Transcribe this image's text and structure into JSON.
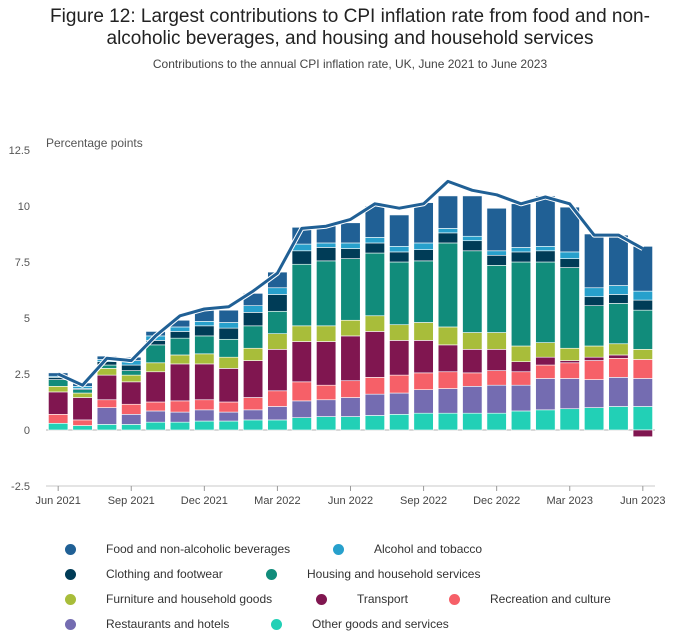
{
  "chart_data": {
    "type": "bar",
    "title": "Figure 12: Largest contributions to CPI inflation rate from food and non-alcoholic beverages, and housing and household services",
    "title_lines": [
      "Figure 12: Largest contributions to CPI inflation rate from food and non-",
      "alcoholic beverages, and housing and household services"
    ],
    "subtitle": "Contributions to the annual CPI inflation rate, UK, June 2021 to June 2023",
    "ylabel": "Percentage points",
    "ylim": [
      -2.5,
      12.5
    ],
    "yticks": [
      -2.5,
      0,
      2.5,
      5,
      7.5,
      10,
      12.5
    ],
    "ytick_labels": [
      "-2.5",
      "0",
      "2.5",
      "5",
      "7.5",
      "10",
      "12.5"
    ],
    "stacked": true,
    "grid": false,
    "legend_position": "bottom",
    "categories": [
      "Jun 2021",
      "Jul 2021",
      "Aug 2021",
      "Sep 2021",
      "Oct 2021",
      "Nov 2021",
      "Dec 2021",
      "Jan 2022",
      "Feb 2022",
      "Mar 2022",
      "Apr 2022",
      "May 2022",
      "Jun 2022",
      "Jul 2022",
      "Aug 2022",
      "Sep 2022",
      "Oct 2022",
      "Nov 2022",
      "Dec 2022",
      "Jan 2023",
      "Feb 2023",
      "Mar 2023",
      "Apr 2023",
      "May 2023",
      "Jun 2023"
    ],
    "xtick_labels": [
      {
        "index": 0,
        "label": "Jun 2021"
      },
      {
        "index": 3,
        "label": "Sep 2021"
      },
      {
        "index": 6,
        "label": "Dec 2021"
      },
      {
        "index": 9,
        "label": "Mar 2022"
      },
      {
        "index": 12,
        "label": "Jun 2022"
      },
      {
        "index": 15,
        "label": "Sep 2022"
      },
      {
        "index": 18,
        "label": "Dec 2022"
      },
      {
        "index": 21,
        "label": "Mar 2023"
      },
      {
        "index": 24,
        "label": "Jun 2023"
      }
    ],
    "series": [
      {
        "name": "Other goods and services",
        "color": "#22d0b6",
        "values": [
          0.3,
          0.2,
          0.25,
          0.25,
          0.35,
          0.35,
          0.4,
          0.4,
          0.45,
          0.45,
          0.55,
          0.6,
          0.6,
          0.65,
          0.7,
          0.75,
          0.75,
          0.75,
          0.75,
          0.85,
          0.9,
          0.95,
          1.0,
          1.05,
          1.05
        ]
      },
      {
        "name": "Restaurants and hotels",
        "color": "#746cb1",
        "values": [
          0.0,
          0.0,
          0.75,
          0.45,
          0.5,
          0.45,
          0.5,
          0.4,
          0.45,
          0.6,
          0.75,
          0.75,
          0.85,
          0.95,
          0.95,
          1.05,
          1.1,
          1.2,
          1.25,
          1.15,
          1.4,
          1.35,
          1.25,
          1.3,
          1.25
        ]
      },
      {
        "name": "Recreation and culture",
        "color": "#f66068",
        "values": [
          0.4,
          0.25,
          0.35,
          0.45,
          0.4,
          0.5,
          0.45,
          0.45,
          0.55,
          0.7,
          0.85,
          0.65,
          0.75,
          0.75,
          0.8,
          0.75,
          0.75,
          0.6,
          0.65,
          0.6,
          0.6,
          0.7,
          0.85,
          0.85,
          0.85
        ]
      },
      {
        "name": "Transport",
        "color": "#801650",
        "values": [
          1.0,
          1.0,
          1.1,
          1.0,
          1.35,
          1.65,
          1.6,
          1.5,
          1.65,
          1.85,
          1.8,
          1.95,
          2.0,
          2.05,
          1.55,
          1.45,
          1.2,
          1.05,
          0.95,
          0.45,
          0.35,
          0.1,
          0.15,
          0.15,
          -0.3
        ]
      },
      {
        "name": "Furniture and household goods",
        "color": "#a8bd3a",
        "values": [
          0.25,
          0.2,
          0.3,
          0.3,
          0.4,
          0.4,
          0.45,
          0.5,
          0.55,
          0.7,
          0.7,
          0.7,
          0.7,
          0.7,
          0.7,
          0.8,
          0.8,
          0.75,
          0.75,
          0.7,
          0.65,
          0.55,
          0.5,
          0.5,
          0.45
        ]
      },
      {
        "name": "Housing and household services",
        "color": "#118c7b",
        "values": [
          0.3,
          0.15,
          0.15,
          0.2,
          0.8,
          0.75,
          0.8,
          0.8,
          1.0,
          1.0,
          2.75,
          2.9,
          2.75,
          2.8,
          2.8,
          2.75,
          3.75,
          3.65,
          3.0,
          3.75,
          3.6,
          3.6,
          1.8,
          1.8,
          1.75
        ]
      },
      {
        "name": "Clothing and footwear",
        "color": "#003c57",
        "values": [
          0.1,
          0.05,
          0.15,
          0.25,
          0.2,
          0.3,
          0.45,
          0.5,
          0.6,
          0.75,
          0.6,
          0.6,
          0.45,
          0.45,
          0.45,
          0.5,
          0.45,
          0.45,
          0.45,
          0.45,
          0.5,
          0.4,
          0.4,
          0.4,
          0.45
        ]
      },
      {
        "name": "Alcohol and tobacco",
        "color": "#27a0cc",
        "values": [
          0.05,
          0.1,
          0.1,
          0.2,
          0.2,
          0.2,
          0.2,
          0.25,
          0.3,
          0.3,
          0.3,
          0.2,
          0.25,
          0.25,
          0.25,
          0.3,
          0.2,
          0.2,
          0.2,
          0.2,
          0.2,
          0.3,
          0.4,
          0.4,
          0.4
        ]
      },
      {
        "name": "Food and non-alcoholic beverages",
        "color": "#206095",
        "values": [
          0.15,
          0.15,
          0.15,
          0.15,
          0.2,
          0.3,
          0.55,
          0.55,
          0.55,
          0.7,
          0.75,
          0.8,
          0.9,
          1.4,
          1.4,
          1.8,
          1.45,
          1.8,
          1.9,
          1.95,
          2.25,
          2.0,
          2.4,
          2.25,
          2.0
        ]
      }
    ],
    "line": {
      "name": "CPI annual rate",
      "color": "#206095",
      "values": [
        2.5,
        2.0,
        3.2,
        3.1,
        4.2,
        5.1,
        5.4,
        5.5,
        6.2,
        7.0,
        9.0,
        9.1,
        9.4,
        10.1,
        9.9,
        10.1,
        11.1,
        10.7,
        10.5,
        10.1,
        10.4,
        10.1,
        8.7,
        8.7,
        8.1
      ]
    }
  }
}
